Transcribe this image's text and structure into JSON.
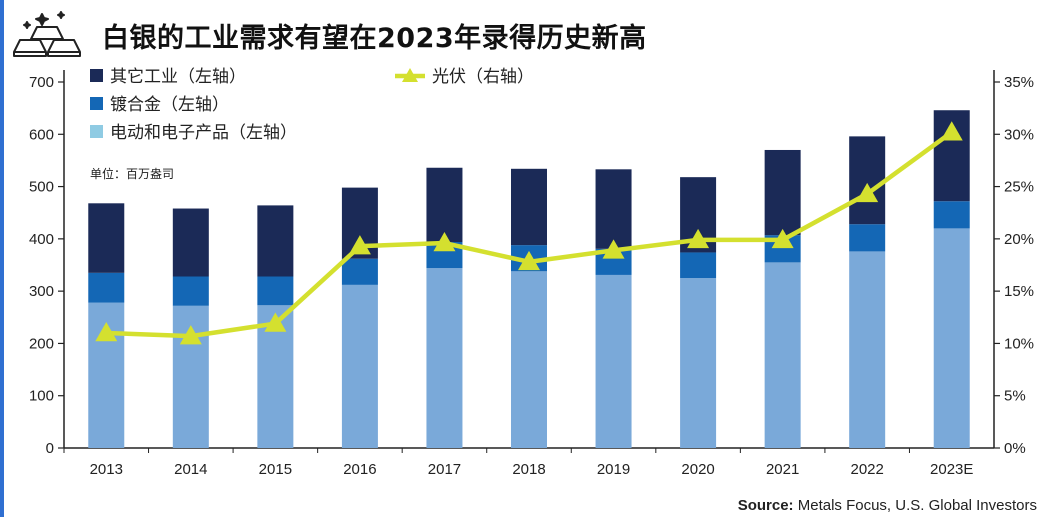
{
  "title": "白银的工业需求有望在2023年录得历史新高",
  "logo_icon": "silver-bars-icon",
  "source_label": "Source:",
  "source_text": "Metals Focus, U.S. Global Investors",
  "colors": {
    "other_industrial": "#1b2a57",
    "brazing": "#1467b5",
    "electrical": "#7aa9d9",
    "photovoltaic": "#d4e02f",
    "left_accent": "#2f6fd1"
  },
  "chart_data": {
    "type": "bar",
    "stacked": true,
    "categories": [
      "2013",
      "2014",
      "2015",
      "2016",
      "2017",
      "2018",
      "2019",
      "2020",
      "2021",
      "2022",
      "2023E"
    ],
    "unit_note": "单位：百万盎司",
    "left_axis": {
      "ylim": [
        0,
        700
      ],
      "ticks": [
        "0",
        "100",
        "200",
        "300",
        "400",
        "500",
        "600",
        "700"
      ]
    },
    "right_axis": {
      "ylim": [
        0,
        35
      ],
      "ticks": [
        "0%",
        "5%",
        "10%",
        "15%",
        "20%",
        "25%",
        "30%",
        "35%"
      ]
    },
    "series": [
      {
        "name": "电动和电子产品（左轴）",
        "key": "electrical",
        "values": [
          278,
          272,
          273,
          312,
          344,
          338,
          331,
          325,
          355,
          376,
          420
        ]
      },
      {
        "name": "镀合金（左轴）",
        "key": "brazing",
        "values": [
          57,
          56,
          55,
          50,
          50,
          50,
          50,
          49,
          52,
          52,
          52
        ]
      },
      {
        "name": "其它工业（左轴）",
        "key": "other_industrial",
        "values": [
          133,
          130,
          136,
          136,
          142,
          146,
          152,
          144,
          163,
          168,
          174
        ]
      }
    ],
    "line_series": {
      "name": "光伏（右轴）",
      "key": "photovoltaic",
      "axis": "right",
      "values": [
        11.0,
        10.7,
        11.9,
        19.3,
        19.6,
        17.8,
        18.9,
        19.9,
        19.9,
        24.3,
        30.2
      ]
    },
    "legend": {
      "left": [
        "其它工业（左轴）",
        "镀合金（左轴）",
        "电动和电子产品（左轴）"
      ],
      "right": [
        "光伏（右轴）"
      ]
    },
    "grid": false
  }
}
